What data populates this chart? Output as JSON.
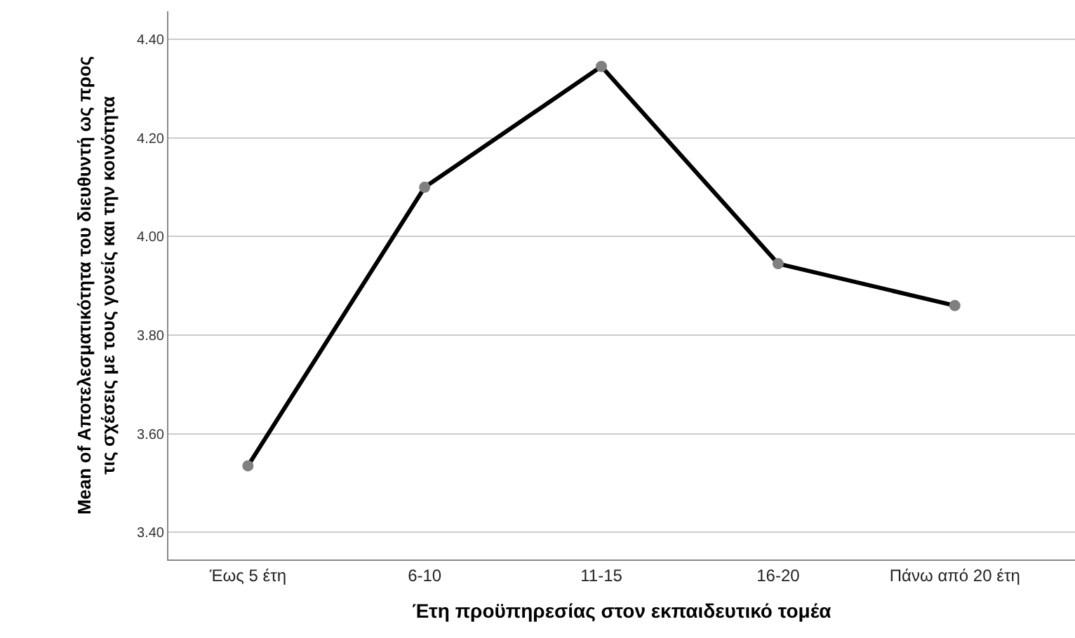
{
  "chart_data": {
    "type": "line",
    "xlabel": "Έτη προϋπηρεσίας στον εκπαιδευτικό τομέα",
    "ylabel": "Mean of Αποτελεσματικότητα του διευθυντή ως προς τις σχέσεις με τους γονείς και την κοινότητα",
    "categories": [
      "Έως 5 έτη",
      "6-10",
      "11-15",
      "16-20",
      "Πάνω από 20 έτη"
    ],
    "series": [
      {
        "color": "#000000",
        "values": [
          3.535,
          4.1,
          4.345,
          3.945,
          3.86
        ]
      }
    ],
    "ylim": [
      3.345,
      4.457
    ],
    "yticks": [
      {
        "value": 3.4,
        "label": "3.40"
      },
      {
        "value": 3.6,
        "label": "3.60"
      },
      {
        "value": 3.8,
        "label": "3.80"
      },
      {
        "value": 4.0,
        "label": "4.00"
      },
      {
        "value": 4.2,
        "label": "4.20"
      },
      {
        "value": 4.4,
        "label": "4.40"
      }
    ],
    "grid": "y",
    "marker": "circle",
    "line_style": "solid"
  }
}
